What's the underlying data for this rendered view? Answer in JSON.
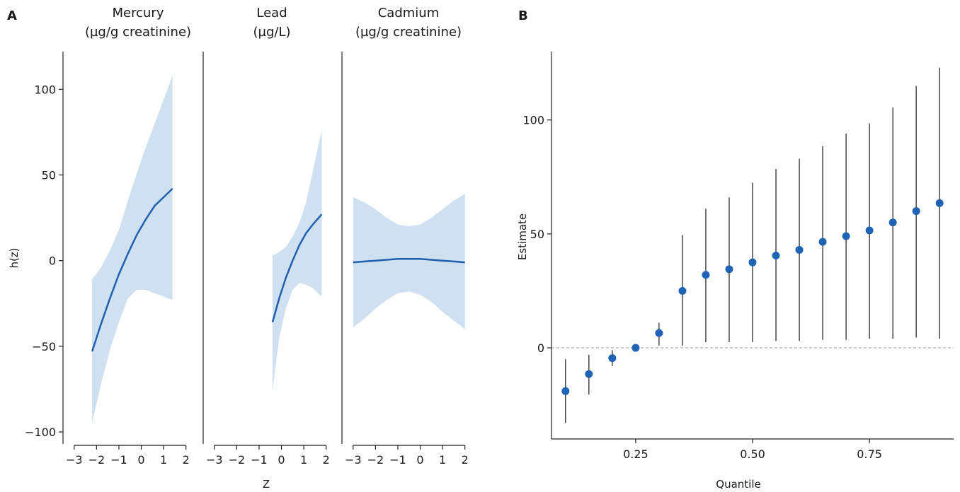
{
  "colors": {
    "line": "#1f5fae",
    "band": "#cfe0f0",
    "point": "#1f64b4",
    "axis": "#222222",
    "refline": "#999999"
  },
  "panel_labels": {
    "a": "A",
    "b": "B"
  },
  "chart_data": [
    {
      "type": "line",
      "panel": "A",
      "subtitles": [
        {
          "line1": "Mercury",
          "line2": "(µg/g creatinine)"
        },
        {
          "line1": "Lead",
          "line2": "(µg/L)"
        },
        {
          "line1": "Cadmium",
          "line2": "(µg/g creatinine)"
        }
      ],
      "xlabel": "Z",
      "ylabel": "h(z)",
      "xlim": [
        -3.5,
        2.2
      ],
      "ylim": [
        -107,
        122
      ],
      "xticks": [
        -3,
        -2,
        -1,
        0,
        1,
        2
      ],
      "xtick_labels": [
        "−3",
        "−2",
        "−1",
        "0",
        "1",
        "2"
      ],
      "yticks": [
        -100,
        -50,
        0,
        50,
        100
      ],
      "ytick_labels": [
        "−100",
        "−50",
        "0",
        "50",
        "100"
      ],
      "series": [
        {
          "x": [
            -2.2,
            -1.8,
            -1.4,
            -1.0,
            -0.6,
            -0.2,
            0.2,
            0.6,
            1.0,
            1.4
          ],
          "y": [
            -53,
            -37,
            -22,
            -8,
            4,
            15,
            24,
            32,
            37,
            42
          ],
          "lower": [
            -95,
            -72,
            -52,
            -36,
            -22,
            -17,
            -17,
            -19,
            -21,
            -23
          ],
          "upper": [
            -11,
            -4,
            6,
            18,
            35,
            51,
            66,
            80,
            94,
            108
          ]
        },
        {
          "x": [
            -0.4,
            -0.1,
            0.2,
            0.5,
            0.8,
            1.1,
            1.4,
            1.8
          ],
          "y": [
            -36,
            -22,
            -10,
            0,
            9,
            16,
            21,
            27
          ],
          "lower": [
            -76,
            -45,
            -28,
            -17,
            -13,
            -14,
            -16,
            -21
          ],
          "upper": [
            3,
            5,
            8,
            14,
            22,
            34,
            52,
            76
          ]
        },
        {
          "x": [
            -3.0,
            -2.5,
            -2.0,
            -1.5,
            -1.0,
            -0.5,
            0.0,
            0.5,
            1.0,
            1.5,
            2.0
          ],
          "y": [
            -1,
            -0.5,
            0,
            0.5,
            1,
            1,
            1,
            0.5,
            0,
            -0.5,
            -1
          ],
          "lower": [
            -39,
            -34,
            -28,
            -23,
            -19,
            -18,
            -20,
            -24,
            -30,
            -35,
            -40
          ],
          "upper": [
            37,
            34,
            30,
            25,
            21,
            20,
            21,
            25,
            30,
            35,
            39
          ]
        }
      ]
    },
    {
      "type": "scatter",
      "panel": "B",
      "xlabel": "Quantile",
      "ylabel": "Estimate",
      "xlim": [
        0.07,
        0.93
      ],
      "ylim": [
        -40,
        130
      ],
      "xticks": [
        0.25,
        0.5,
        0.75
      ],
      "xtick_labels": [
        "0.25",
        "0.50",
        "0.75"
      ],
      "yticks": [
        0,
        50,
        100
      ],
      "ytick_labels": [
        "0",
        "50",
        "100"
      ],
      "reference_line": 0,
      "x": [
        0.1,
        0.15,
        0.2,
        0.25,
        0.3,
        0.35,
        0.4,
        0.45,
        0.5,
        0.55,
        0.6,
        0.65,
        0.7,
        0.75,
        0.8,
        0.85,
        0.9
      ],
      "y": [
        -19,
        -11.5,
        -4.5,
        0,
        6.5,
        25,
        32,
        34.5,
        37.5,
        40.5,
        43,
        46.5,
        49,
        51.5,
        55,
        60,
        63.5
      ],
      "lower": [
        -33,
        -20.5,
        -8,
        0,
        1,
        1,
        2.5,
        2.5,
        2.5,
        3,
        3,
        3.5,
        3.5,
        4,
        4,
        4.5,
        4
      ],
      "upper": [
        -5,
        -3,
        -1,
        0,
        11,
        49.5,
        61,
        66,
        72.5,
        78.5,
        83,
        88.5,
        94,
        98.5,
        105.5,
        115,
        123
      ]
    }
  ]
}
